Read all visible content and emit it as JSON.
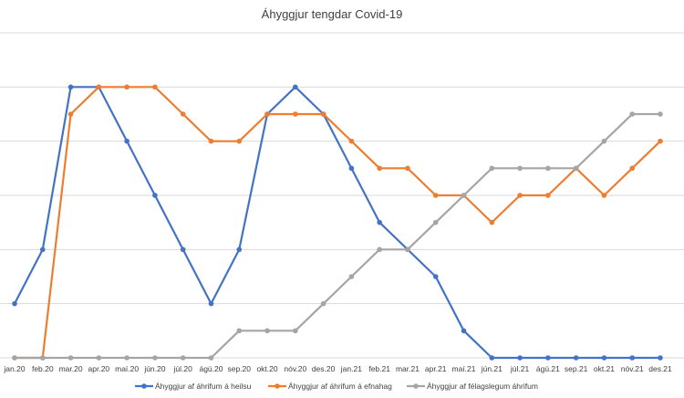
{
  "chart_data": {
    "type": "line",
    "title": "Áhyggjur tengdar Covid-19",
    "xlabel": "",
    "ylabel": "",
    "ylim": [
      0,
      6
    ],
    "grid": true,
    "y_tick_labels": false,
    "legend_position": "bottom",
    "categories": [
      "jan.20",
      "feb.20",
      "mar.20",
      "apr.20",
      "maí.20",
      "jún.20",
      "júl.20",
      "ágú.20",
      "sep.20",
      "okt.20",
      "nóv.20",
      "des.20",
      "jan.21",
      "feb.21",
      "mar.21",
      "apr.21",
      "maí.21",
      "jún.21",
      "júl.21",
      "ágú.21",
      "sep.21",
      "okt.21",
      "nóv.21",
      "des.21"
    ],
    "series": [
      {
        "name": "Áhyggjur af áhrifum á heilsu",
        "color": "#4472c4",
        "values": [
          1,
          2,
          5,
          5,
          4,
          3,
          2,
          1,
          2,
          4.5,
          5,
          4.5,
          3.5,
          2.5,
          2,
          1.5,
          0.5,
          0,
          0,
          0,
          0,
          0,
          0,
          0
        ]
      },
      {
        "name": "Áhyggjur af áhrifum á efnahag",
        "color": "#ed7d31",
        "values": [
          0,
          0,
          4.5,
          5,
          5,
          5,
          4.5,
          4,
          4,
          4.5,
          4.5,
          4.5,
          4,
          3.5,
          3.5,
          3,
          3,
          2.5,
          3,
          3,
          3.5,
          3,
          3.5,
          4
        ]
      },
      {
        "name": "Áhyggjur af félagslegum áhrifum",
        "color": "#a5a5a5",
        "values": [
          0,
          0,
          0,
          0,
          0,
          0,
          0,
          0,
          0.5,
          0.5,
          0.5,
          1,
          1.5,
          2,
          2,
          2.5,
          3,
          3.5,
          3.5,
          3.5,
          3.5,
          4,
          4.5,
          4.5
        ]
      }
    ]
  }
}
